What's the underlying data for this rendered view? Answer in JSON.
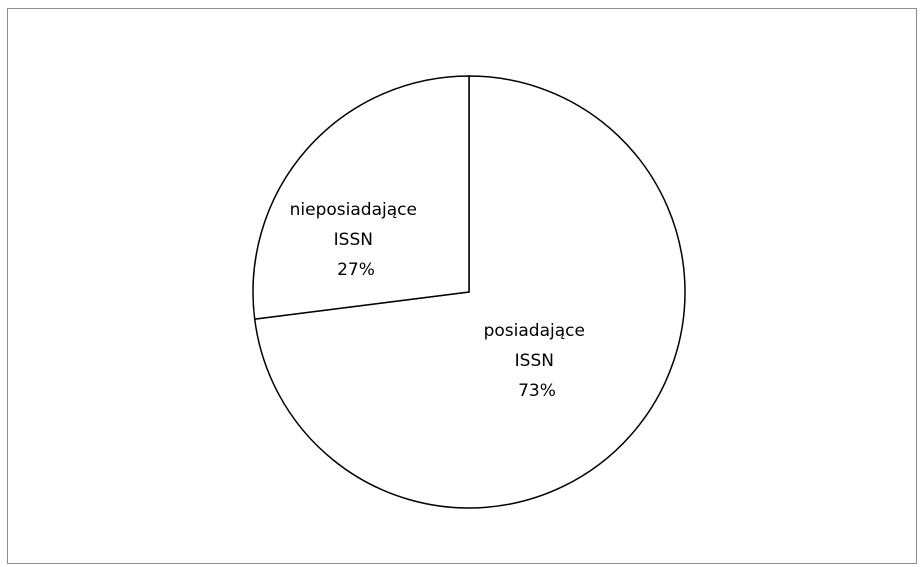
{
  "chart_data": {
    "type": "pie",
    "slices": [
      {
        "label_lines": [
          "posiadające",
          "ISSN",
          "73%"
        ],
        "value": 73
      },
      {
        "label_lines": [
          "nieposiadające",
          "ISSN",
          "27%"
        ],
        "value": 27
      }
    ],
    "legend": "none",
    "colors": {
      "fill": "#ffffff",
      "stroke": "#000000",
      "frame": "#8c8c8c"
    }
  }
}
